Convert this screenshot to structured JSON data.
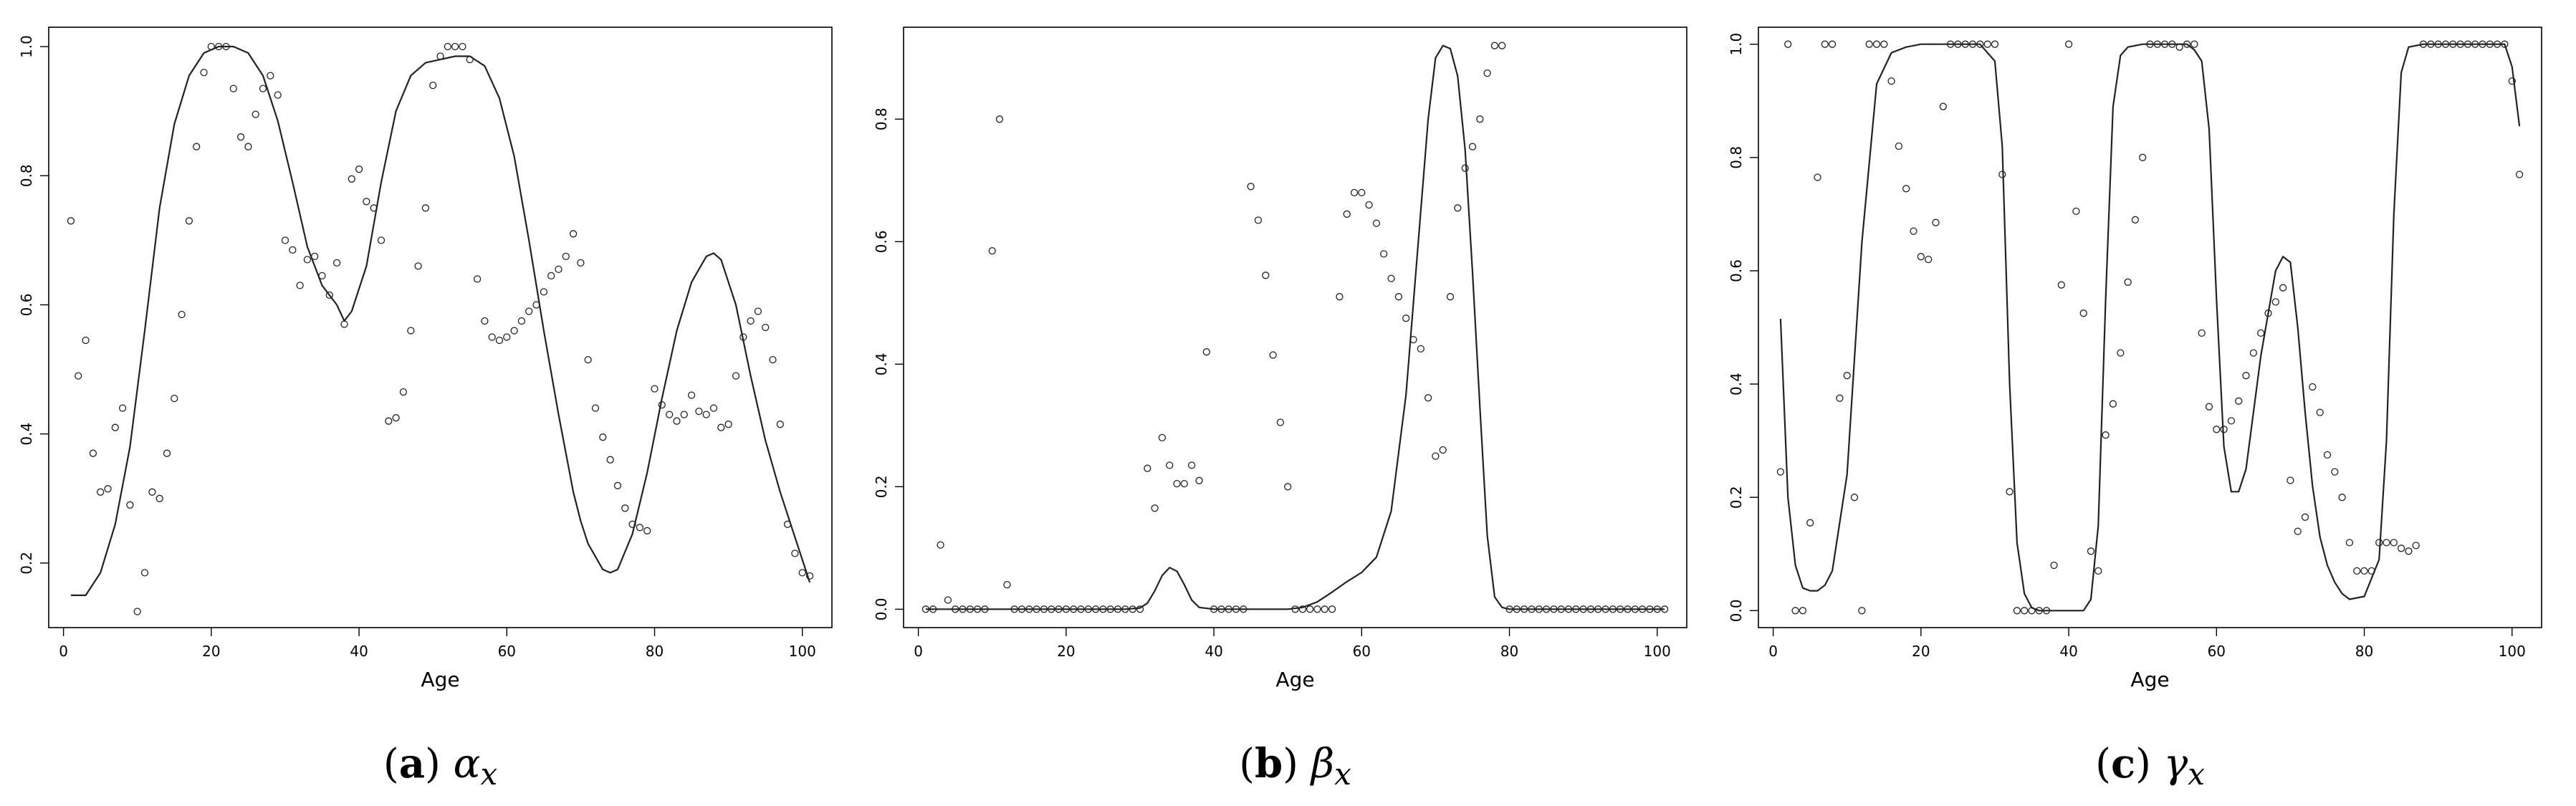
{
  "chart_data": [
    {
      "type": "scatter",
      "caption": {
        "letter": "a",
        "symbol": "α",
        "subscript": "x"
      },
      "xlabel": "Age",
      "ylabel": "",
      "xlim": [
        -2,
        104
      ],
      "ylim": [
        0.1,
        1.03
      ],
      "xticks": [
        0,
        20,
        40,
        60,
        80,
        100
      ],
      "yticks": [
        0.2,
        0.4,
        0.6,
        0.8,
        1.0
      ],
      "ytick_labels": [
        "0.2",
        "0.4",
        "0.6",
        "0.8",
        "1.0"
      ],
      "grid": false,
      "series": [
        {
          "kind": "points",
          "x": [
            1,
            2,
            3,
            4,
            5,
            6,
            7,
            8,
            9,
            10,
            11,
            12,
            13,
            14,
            15,
            16,
            17,
            18,
            19,
            20,
            21,
            22,
            23,
            24,
            25,
            26,
            27,
            28,
            29,
            30,
            31,
            32,
            33,
            34,
            35,
            36,
            37,
            38,
            39,
            40,
            41,
            42,
            43,
            44,
            45,
            46,
            47,
            48,
            49,
            50,
            51,
            52,
            53,
            54,
            55,
            56,
            57,
            58,
            59,
            60,
            61,
            62,
            63,
            64,
            65,
            66,
            67,
            68,
            69,
            70,
            71,
            72,
            73,
            74,
            75,
            76,
            77,
            78,
            79,
            80,
            81,
            82,
            83,
            84,
            85,
            86,
            87,
            88,
            89,
            90,
            91,
            92,
            93,
            94,
            95,
            96,
            97,
            98,
            99,
            100,
            101
          ],
          "y": [
            0.73,
            0.49,
            0.545,
            0.37,
            0.31,
            0.315,
            0.41,
            0.44,
            0.29,
            0.125,
            0.185,
            0.31,
            0.3,
            0.37,
            0.455,
            0.585,
            0.73,
            0.845,
            0.96,
            1.0,
            1.0,
            1.0,
            0.935,
            0.86,
            0.845,
            0.895,
            0.935,
            0.955,
            0.925,
            0.7,
            0.685,
            0.63,
            0.67,
            0.675,
            0.645,
            0.615,
            0.665,
            0.57,
            0.795,
            0.81,
            0.76,
            0.75,
            0.7,
            0.42,
            0.425,
            0.465,
            0.56,
            0.66,
            0.75,
            0.94,
            0.985,
            1.0,
            1.0,
            1.0,
            0.98,
            0.64,
            0.575,
            0.55,
            0.545,
            0.55,
            0.56,
            0.575,
            0.59,
            0.6,
            0.62,
            0.645,
            0.655,
            0.675,
            0.71,
            0.665,
            0.515,
            0.44,
            0.395,
            0.36,
            0.32,
            0.285,
            0.26,
            0.255,
            0.25,
            0.47,
            0.445,
            0.43,
            0.42,
            0.43,
            0.46,
            0.435,
            0.43,
            0.44,
            0.41,
            0.415,
            0.49,
            0.55,
            0.575,
            0.59,
            0.565,
            0.515,
            0.415,
            0.26,
            0.215,
            0.185,
            0.18
          ]
        },
        {
          "kind": "line",
          "x": [
            1,
            3,
            5,
            7,
            9,
            11,
            13,
            15,
            17,
            19,
            21,
            23,
            25,
            27,
            29,
            31,
            33,
            35,
            37,
            38,
            39,
            41,
            43,
            45,
            47,
            49,
            51,
            53,
            55,
            57,
            59,
            61,
            63,
            65,
            67,
            69,
            70,
            71,
            73,
            74,
            75,
            77,
            79,
            81,
            83,
            85,
            87,
            88,
            89,
            91,
            93,
            95,
            97,
            99,
            101
          ],
          "y": [
            0.15,
            0.15,
            0.185,
            0.26,
            0.38,
            0.56,
            0.75,
            0.88,
            0.955,
            0.99,
            1.0,
            1.0,
            0.99,
            0.955,
            0.885,
            0.79,
            0.69,
            0.63,
            0.6,
            0.575,
            0.59,
            0.66,
            0.79,
            0.9,
            0.955,
            0.975,
            0.98,
            0.985,
            0.985,
            0.97,
            0.92,
            0.83,
            0.7,
            0.56,
            0.43,
            0.31,
            0.265,
            0.23,
            0.19,
            0.185,
            0.19,
            0.245,
            0.34,
            0.455,
            0.56,
            0.635,
            0.675,
            0.68,
            0.67,
            0.6,
            0.49,
            0.39,
            0.31,
            0.24,
            0.17
          ]
        }
      ]
    },
    {
      "type": "scatter",
      "caption": {
        "letter": "b",
        "symbol": "β",
        "subscript": "x"
      },
      "xlabel": "Age",
      "ylabel": "",
      "xlim": [
        -2,
        104
      ],
      "ylim": [
        -0.03,
        0.95
      ],
      "xticks": [
        0,
        20,
        40,
        60,
        80,
        100
      ],
      "yticks": [
        0.0,
        0.2,
        0.4,
        0.6,
        0.8
      ],
      "ytick_labels": [
        "0.0",
        "0.2",
        "0.4",
        "0.6",
        "0.8"
      ],
      "grid": false,
      "series": [
        {
          "kind": "points",
          "x": [
            1,
            2,
            3,
            4,
            5,
            6,
            7,
            8,
            9,
            10,
            11,
            12,
            13,
            14,
            15,
            16,
            17,
            18,
            19,
            20,
            21,
            22,
            23,
            24,
            25,
            26,
            27,
            28,
            29,
            30,
            31,
            32,
            33,
            34,
            35,
            36,
            37,
            38,
            39,
            40,
            41,
            42,
            43,
            44,
            45,
            46,
            47,
            48,
            49,
            50,
            51,
            52,
            53,
            54,
            55,
            56,
            57,
            58,
            59,
            60,
            61,
            62,
            63,
            64,
            65,
            66,
            67,
            68,
            69,
            70,
            71,
            72,
            73,
            74,
            75,
            76,
            77,
            78,
            79,
            80,
            81,
            82,
            83,
            84,
            85,
            86,
            87,
            88,
            89,
            90,
            91,
            92,
            93,
            94,
            95,
            96,
            97,
            98,
            99,
            100,
            101
          ],
          "y": [
            0.0,
            0.0,
            0.105,
            0.015,
            0.0,
            0.0,
            0.0,
            0.0,
            0.0,
            0.585,
            0.8,
            0.04,
            0.0,
            0.0,
            0.0,
            0.0,
            0.0,
            0.0,
            0.0,
            0.0,
            0.0,
            0.0,
            0.0,
            0.0,
            0.0,
            0.0,
            0.0,
            0.0,
            0.0,
            0.0,
            0.23,
            0.165,
            0.28,
            0.235,
            0.205,
            0.205,
            0.235,
            0.21,
            0.42,
            0.0,
            0.0,
            0.0,
            0.0,
            0.0,
            0.69,
            0.635,
            0.545,
            0.415,
            0.305,
            0.2,
            0.0,
            0.0,
            0.0,
            0.0,
            0.0,
            0.0,
            0.51,
            0.645,
            0.68,
            0.68,
            0.66,
            0.63,
            0.58,
            0.54,
            0.51,
            0.475,
            0.44,
            0.425,
            0.345,
            0.25,
            0.26,
            0.51,
            0.655,
            0.72,
            0.755,
            0.8,
            0.875,
            0.92,
            0.92,
            0.0,
            0.0,
            0.0,
            0.0,
            0.0,
            0.0,
            0.0,
            0.0,
            0.0,
            0.0,
            0.0,
            0.0,
            0.0,
            0.0,
            0.0,
            0.0,
            0.0,
            0.0,
            0.0,
            0.0,
            0.0,
            0.0
          ]
        },
        {
          "kind": "line",
          "x": [
            1,
            10,
            20,
            28,
            30,
            31,
            32,
            33,
            34,
            35,
            36,
            37,
            38,
            40,
            45,
            50,
            52,
            54,
            56,
            58,
            60,
            62,
            64,
            66,
            67,
            68,
            69,
            70,
            71,
            72,
            73,
            74,
            75,
            76,
            77,
            78,
            79,
            80,
            85,
            90,
            95,
            101
          ],
          "y": [
            0.0,
            0.0,
            0.0,
            0.0,
            0.002,
            0.01,
            0.03,
            0.055,
            0.068,
            0.062,
            0.04,
            0.015,
            0.003,
            0.0,
            0.0,
            0.0,
            0.003,
            0.012,
            0.028,
            0.045,
            0.06,
            0.085,
            0.16,
            0.35,
            0.5,
            0.65,
            0.8,
            0.9,
            0.92,
            0.915,
            0.87,
            0.75,
            0.55,
            0.33,
            0.12,
            0.02,
            0.003,
            0.0,
            0.0,
            0.0,
            0.0,
            0.0
          ]
        }
      ]
    },
    {
      "type": "scatter",
      "caption": {
        "letter": "c",
        "symbol": "γ",
        "subscript": "x"
      },
      "xlabel": "Age",
      "ylabel": "",
      "xlim": [
        -2,
        104
      ],
      "ylim": [
        -0.03,
        1.03
      ],
      "xticks": [
        0,
        20,
        40,
        60,
        80,
        100
      ],
      "yticks": [
        0.0,
        0.2,
        0.4,
        0.6,
        0.8,
        1.0
      ],
      "ytick_labels": [
        "0.0",
        "0.2",
        "0.4",
        "0.6",
        "0.8",
        "1.0"
      ],
      "grid": false,
      "series": [
        {
          "kind": "points",
          "x": [
            1,
            2,
            3,
            4,
            5,
            6,
            7,
            8,
            9,
            10,
            11,
            12,
            13,
            14,
            15,
            16,
            17,
            18,
            19,
            20,
            21,
            22,
            23,
            24,
            25,
            26,
            27,
            28,
            29,
            30,
            31,
            32,
            33,
            34,
            35,
            36,
            37,
            38,
            39,
            40,
            41,
            42,
            43,
            44,
            45,
            46,
            47,
            48,
            49,
            50,
            51,
            52,
            53,
            54,
            55,
            56,
            57,
            58,
            59,
            60,
            61,
            62,
            63,
            64,
            65,
            66,
            67,
            68,
            69,
            70,
            71,
            72,
            73,
            74,
            75,
            76,
            77,
            78,
            79,
            80,
            81,
            82,
            83,
            84,
            85,
            86,
            87,
            88,
            89,
            90,
            91,
            92,
            93,
            94,
            95,
            96,
            97,
            98,
            99,
            100,
            101
          ],
          "y": [
            0.245,
            1.0,
            0.0,
            0.0,
            0.155,
            0.765,
            1.0,
            1.0,
            0.375,
            0.415,
            0.2,
            0.0,
            1.0,
            1.0,
            1.0,
            0.935,
            0.82,
            0.745,
            0.67,
            0.625,
            0.62,
            0.685,
            0.89,
            1.0,
            1.0,
            1.0,
            1.0,
            1.0,
            1.0,
            1.0,
            0.77,
            0.21,
            0.0,
            0.0,
            0.0,
            0.0,
            0.0,
            0.08,
            0.575,
            1.0,
            0.705,
            0.525,
            0.105,
            0.07,
            0.31,
            0.365,
            0.455,
            0.58,
            0.69,
            0.8,
            1.0,
            1.0,
            1.0,
            1.0,
            0.995,
            1.0,
            1.0,
            0.49,
            0.36,
            0.32,
            0.32,
            0.335,
            0.37,
            0.415,
            0.455,
            0.49,
            0.525,
            0.545,
            0.57,
            0.23,
            0.14,
            0.165,
            0.395,
            0.35,
            0.275,
            0.245,
            0.2,
            0.12,
            0.07,
            0.07,
            0.07,
            0.12,
            0.12,
            0.12,
            0.11,
            0.105,
            0.115,
            1.0,
            1.0,
            1.0,
            1.0,
            1.0,
            1.0,
            1.0,
            1.0,
            1.0,
            1.0,
            1.0,
            1.0,
            0.935,
            0.77
          ]
        },
        {
          "kind": "line",
          "x": [
            1,
            2,
            3,
            4,
            5,
            6,
            7,
            8,
            10,
            12,
            14,
            16,
            18,
            20,
            22,
            24,
            26,
            28,
            30,
            31,
            32,
            33,
            34,
            35,
            36,
            38,
            40,
            42,
            43,
            44,
            45,
            46,
            47,
            48,
            50,
            52,
            54,
            56,
            57,
            58,
            59,
            60,
            61,
            62,
            63,
            64,
            66,
            68,
            69,
            70,
            71,
            72,
            73,
            74,
            75,
            76,
            77,
            78,
            80,
            82,
            83,
            84,
            85,
            86,
            88,
            90,
            95,
            99,
            100,
            101
          ],
          "y": [
            0.515,
            0.2,
            0.08,
            0.04,
            0.035,
            0.035,
            0.045,
            0.07,
            0.24,
            0.65,
            0.93,
            0.985,
            0.995,
            1.0,
            1.0,
            1.0,
            1.0,
            1.0,
            0.97,
            0.82,
            0.4,
            0.12,
            0.03,
            0.005,
            0.0,
            0.0,
            0.0,
            0.0,
            0.02,
            0.15,
            0.55,
            0.89,
            0.98,
            0.995,
            1.0,
            1.0,
            1.0,
            1.0,
            0.99,
            0.97,
            0.85,
            0.55,
            0.29,
            0.21,
            0.21,
            0.25,
            0.45,
            0.6,
            0.625,
            0.615,
            0.5,
            0.35,
            0.22,
            0.13,
            0.08,
            0.05,
            0.03,
            0.02,
            0.025,
            0.09,
            0.3,
            0.7,
            0.95,
            0.995,
            1.0,
            1.0,
            1.0,
            1.0,
            0.96,
            0.855
          ]
        }
      ]
    }
  ]
}
